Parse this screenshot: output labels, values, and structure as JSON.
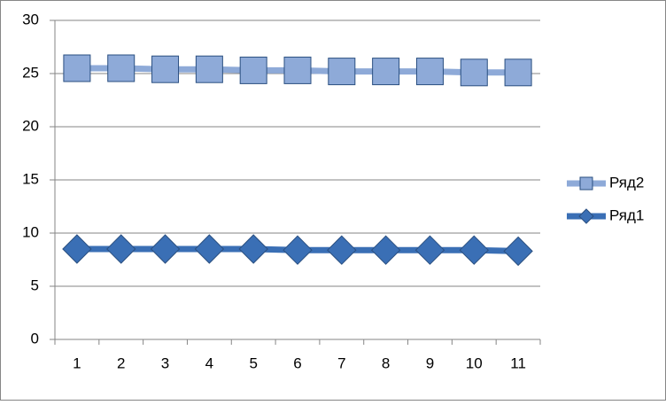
{
  "chart_data": {
    "type": "line",
    "categories": [
      "1",
      "2",
      "3",
      "4",
      "5",
      "6",
      "7",
      "8",
      "9",
      "10",
      "11"
    ],
    "series": [
      {
        "name": "Ряд1",
        "color": "#3a6fb5",
        "marker": "diamond",
        "values": [
          8.5,
          8.5,
          8.5,
          8.5,
          8.5,
          8.4,
          8.4,
          8.4,
          8.4,
          8.4,
          8.3
        ]
      },
      {
        "name": "Ряд2",
        "color": "#8eaad8",
        "marker": "square",
        "values": [
          25.5,
          25.5,
          25.4,
          25.4,
          25.3,
          25.3,
          25.2,
          25.2,
          25.2,
          25.1,
          25.1
        ]
      }
    ],
    "ylim": [
      0,
      30
    ],
    "yticks": [
      0,
      5,
      10,
      15,
      20,
      25,
      30
    ],
    "grid": true,
    "legend": "right"
  }
}
